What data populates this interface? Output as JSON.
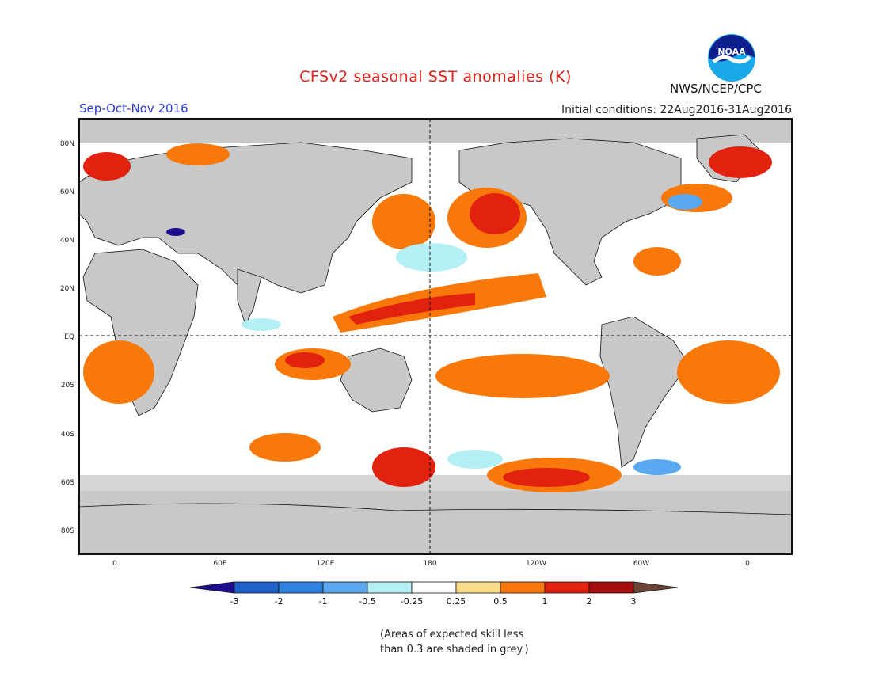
{
  "header": {
    "title": "CFSv2 seasonal SST anomalies (K)",
    "season": "Sep-Oct-Nov 2016",
    "initial_conditions": "Initial conditions: 22Aug2016-31Aug2016",
    "agency": "NWS/NCEP/CPC",
    "logo_text": "NOAA"
  },
  "map": {
    "lat_labels": [
      "80N",
      "60N",
      "40N",
      "20N",
      "EQ",
      "20S",
      "40S",
      "60S",
      "80S"
    ],
    "lon_labels": [
      "0",
      "60E",
      "120E",
      "180",
      "120W",
      "60W",
      "0"
    ],
    "land_color": "#c8c8c8",
    "ocean_color": "#ffffff"
  },
  "colorbar": {
    "labels": [
      "-3",
      "-2",
      "-1",
      "-0.5",
      "-0.25",
      "0.25",
      "0.5",
      "1",
      "2",
      "3"
    ],
    "colors": [
      "#1c0d8c",
      "#1e62cc",
      "#2e82e0",
      "#5aa8ef",
      "#b4eff6",
      "#ffffff",
      "#fadc86",
      "#f9780a",
      "#e2210f",
      "#a80d0d",
      "#6b4436"
    ]
  },
  "footnote": {
    "line1": "(Areas of expected skill less",
    "line2": "than 0.3 are shaded in grey.)"
  }
}
